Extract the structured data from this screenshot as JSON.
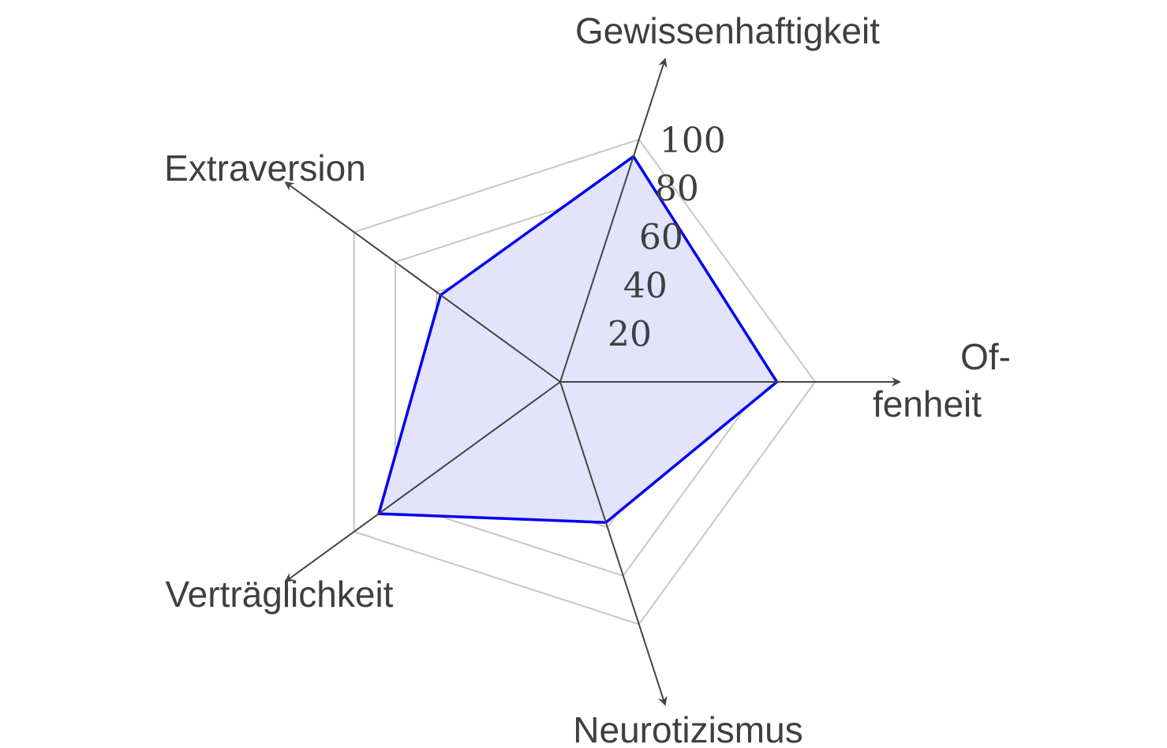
{
  "chart_data": {
    "type": "radar",
    "axes": [
      {
        "name": "Offenheit",
        "label_lines": [
          "Of-",
          "fenheit"
        ]
      },
      {
        "name": "Gewissenhaftigkeit",
        "label_lines": [
          "Gewissenhaftigkeit"
        ]
      },
      {
        "name": "Extraversion",
        "label_lines": [
          "Extraversion"
        ]
      },
      {
        "name": "Verträglichkeit",
        "label_lines": [
          "Verträglichkeit"
        ]
      },
      {
        "name": "Neurotizismus",
        "label_lines": [
          "Neurotizismus"
        ]
      }
    ],
    "ticks": [
      20,
      40,
      60,
      80,
      100
    ],
    "tick_labels": [
      "20",
      "40",
      "60",
      "80",
      "100"
    ],
    "rmax": 100,
    "series": [
      {
        "values": [
          85,
          93,
          58,
          88,
          58
        ],
        "stroke": "#0000ee",
        "fill": "#e3e3fb"
      }
    ],
    "colors": {
      "grid": "#c7c7c7",
      "axis": "#444444",
      "text": "#3f3f3f"
    }
  }
}
